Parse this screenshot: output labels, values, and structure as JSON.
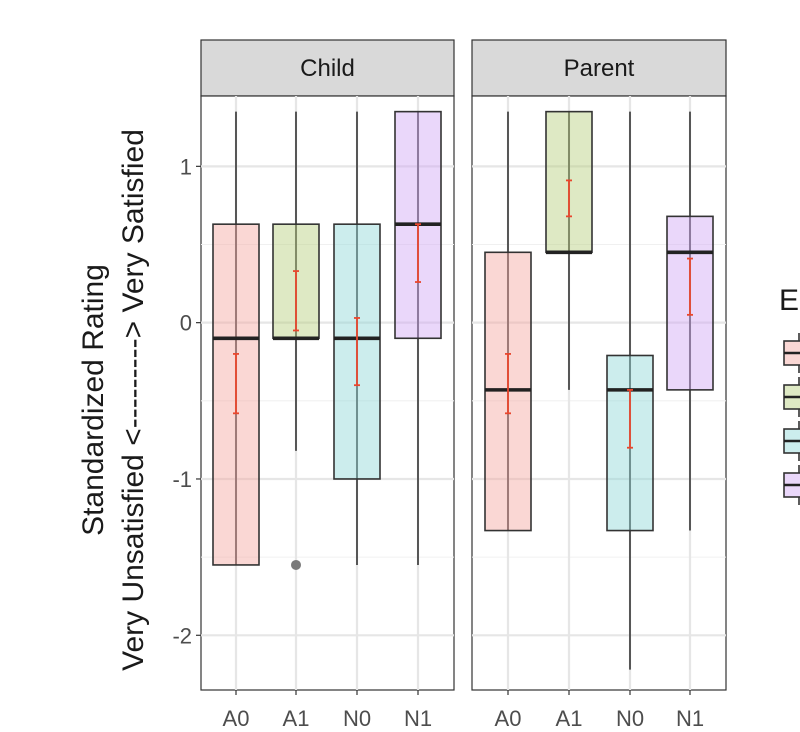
{
  "chart_data": {
    "type": "box",
    "ylabel": "Standardized Rating\nVery Unsatisfied <---------> Very Satisfied",
    "xlabel": "",
    "ylim": [
      -2.35,
      1.45
    ],
    "yticks": [
      -2,
      -1,
      0,
      1
    ],
    "grid": true,
    "categories": [
      "A0",
      "A1",
      "N0",
      "N1"
    ],
    "category_colors": {
      "A0": "#f4a6a0",
      "A1": "#b5cf7c",
      "N0": "#8dd6d8",
      "N1": "#d0a6f5"
    },
    "legend": {
      "title": "E",
      "placement": "right",
      "entries": [
        "",
        "",
        "",
        ""
      ]
    },
    "panels": [
      {
        "title": "Child",
        "boxes": [
          {
            "category": "A0",
            "whisker_low": -1.55,
            "q1": -1.55,
            "median": -0.1,
            "q3": 0.63,
            "whisker_high": 1.35,
            "ci_low": -0.58,
            "ci_high": -0.2,
            "outliers": []
          },
          {
            "category": "A1",
            "whisker_low": -0.82,
            "q1": -0.1,
            "median": -0.1,
            "q3": 0.63,
            "whisker_high": 1.35,
            "ci_low": -0.05,
            "ci_high": 0.33,
            "outliers": [
              -1.55
            ]
          },
          {
            "category": "N0",
            "whisker_low": -1.55,
            "q1": -1.0,
            "median": -0.1,
            "q3": 0.63,
            "whisker_high": 1.35,
            "ci_low": -0.4,
            "ci_high": 0.03,
            "outliers": []
          },
          {
            "category": "N1",
            "whisker_low": -1.55,
            "q1": -0.1,
            "median": 0.63,
            "q3": 1.35,
            "whisker_high": 1.35,
            "ci_low": 0.26,
            "ci_high": 0.63,
            "outliers": []
          }
        ]
      },
      {
        "title": "Parent",
        "boxes": [
          {
            "category": "A0",
            "whisker_low": -1.33,
            "q1": -1.33,
            "median": -0.43,
            "q3": 0.45,
            "whisker_high": 1.35,
            "ci_low": -0.58,
            "ci_high": -0.2,
            "outliers": []
          },
          {
            "category": "A1",
            "whisker_low": -0.43,
            "q1": 0.45,
            "median": 0.45,
            "q3": 1.35,
            "whisker_high": 1.35,
            "ci_low": 0.68,
            "ci_high": 0.91,
            "outliers": []
          },
          {
            "category": "N0",
            "whisker_low": -2.22,
            "q1": -1.33,
            "median": -0.43,
            "q3": -0.21,
            "whisker_high": 1.35,
            "ci_low": -0.8,
            "ci_high": -0.43,
            "outliers": []
          },
          {
            "category": "N1",
            "whisker_low": -1.33,
            "q1": -0.43,
            "median": 0.45,
            "q3": 0.68,
            "whisker_high": 1.35,
            "ci_low": 0.05,
            "ci_high": 0.41,
            "outliers": []
          }
        ]
      }
    ]
  }
}
